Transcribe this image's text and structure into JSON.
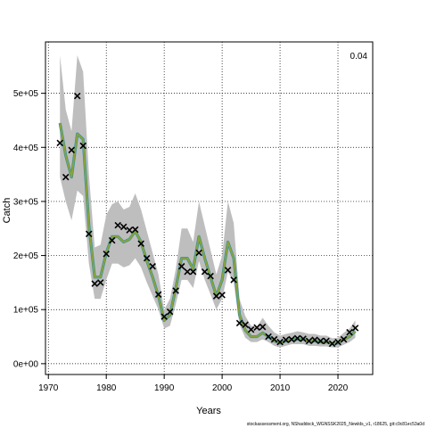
{
  "chart_data": {
    "type": "line",
    "xlabel": "Years",
    "ylabel": "Catch",
    "corner_label": "0.04",
    "footer": "stockassessment.org, NShaddock_WGNSSK2025_Newlds_v1, r18625, git:c9c81ec53a0d",
    "xlim": [
      1969.5,
      2026
    ],
    "ylim": [
      -20000,
      595000
    ],
    "x_ticks": [
      1970,
      1980,
      1990,
      2000,
      2010,
      2020
    ],
    "x_tick_labels": [
      "1970",
      "1980",
      "1990",
      "2000",
      "2010",
      "2020"
    ],
    "y_ticks": [
      0,
      100000,
      200000,
      300000,
      400000,
      500000
    ],
    "y_tick_labels": [
      "0e+00",
      "1e+05",
      "2e+05",
      "3e+05",
      "4e+05",
      "5e+05"
    ],
    "grid": true,
    "colors": {
      "band": "#bebebe",
      "band_small": "#a9b3c4",
      "estimate_outer": "#2f8fa3",
      "estimate_inner": "#8aa33a",
      "observed": "#000000",
      "grid": "#000000"
    },
    "years": [
      1972,
      1973,
      1974,
      1975,
      1976,
      1977,
      1978,
      1979,
      1980,
      1981,
      1982,
      1983,
      1984,
      1985,
      1986,
      1987,
      1988,
      1989,
      1990,
      1991,
      1992,
      1993,
      1994,
      1995,
      1996,
      1997,
      1998,
      1999,
      2000,
      2001,
      2002,
      2003,
      2004,
      2005,
      2006,
      2007,
      2008,
      2009,
      2010,
      2011,
      2012,
      2013,
      2014,
      2015,
      2016,
      2017,
      2018,
      2019,
      2020,
      2021,
      2022,
      2023
    ],
    "estimate": [
      445000,
      385000,
      345000,
      425000,
      415000,
      255000,
      160000,
      160000,
      205000,
      235000,
      235000,
      225000,
      230000,
      245000,
      225000,
      190000,
      160000,
      125000,
      80000,
      90000,
      140000,
      195000,
      195000,
      175000,
      235000,
      195000,
      160000,
      125000,
      155000,
      225000,
      195000,
      90000,
      62000,
      50000,
      50000,
      57000,
      50000,
      42000,
      38000,
      42000,
      45000,
      45000,
      45000,
      42000,
      42000,
      40000,
      40000,
      37000,
      38000,
      45000,
      50000,
      60000
    ],
    "upper": [
      570000,
      470000,
      430000,
      570000,
      540000,
      350000,
      215000,
      220000,
      275000,
      295000,
      300000,
      285000,
      290000,
      315000,
      285000,
      245000,
      205000,
      165000,
      100000,
      120000,
      175000,
      250000,
      250000,
      225000,
      300000,
      255000,
      210000,
      165000,
      200000,
      300000,
      260000,
      120000,
      88000,
      70000,
      68000,
      85000,
      70000,
      58000,
      52000,
      55000,
      57000,
      60000,
      58000,
      55000,
      55000,
      52000,
      52000,
      47000,
      48000,
      57000,
      65000,
      80000
    ],
    "lower": [
      345000,
      300000,
      265000,
      320000,
      310000,
      185000,
      120000,
      120000,
      155000,
      185000,
      185000,
      178000,
      182000,
      195000,
      178000,
      150000,
      125000,
      100000,
      65000,
      70000,
      110000,
      155000,
      155000,
      140000,
      190000,
      155000,
      128000,
      100000,
      120000,
      170000,
      150000,
      72000,
      48000,
      40000,
      40000,
      45000,
      40000,
      33000,
      30000,
      33000,
      36000,
      36000,
      36000,
      33000,
      33000,
      32000,
      32000,
      30000,
      30000,
      35000,
      40000,
      48000
    ],
    "observed": [
      {
        "x": 1972,
        "y": 408000
      },
      {
        "x": 1973,
        "y": 345000
      },
      {
        "x": 1974,
        "y": 395000
      },
      {
        "x": 1975,
        "y": 495000
      },
      {
        "x": 1976,
        "y": 403000
      },
      {
        "x": 1977,
        "y": 240000
      },
      {
        "x": 1978,
        "y": 148000
      },
      {
        "x": 1979,
        "y": 150000
      },
      {
        "x": 1980,
        "y": 203000
      },
      {
        "x": 1981,
        "y": 228000
      },
      {
        "x": 1982,
        "y": 256000
      },
      {
        "x": 1983,
        "y": 253000
      },
      {
        "x": 1984,
        "y": 247000
      },
      {
        "x": 1985,
        "y": 248000
      },
      {
        "x": 1986,
        "y": 222000
      },
      {
        "x": 1987,
        "y": 195000
      },
      {
        "x": 1988,
        "y": 180000
      },
      {
        "x": 1989,
        "y": 128000
      },
      {
        "x": 1990,
        "y": 87000
      },
      {
        "x": 1991,
        "y": 96000
      },
      {
        "x": 1992,
        "y": 135000
      },
      {
        "x": 1993,
        "y": 180000
      },
      {
        "x": 1994,
        "y": 170000
      },
      {
        "x": 1995,
        "y": 170000
      },
      {
        "x": 1996,
        "y": 205000
      },
      {
        "x": 1997,
        "y": 170000
      },
      {
        "x": 1998,
        "y": 162000
      },
      {
        "x": 1999,
        "y": 125000
      },
      {
        "x": 2000,
        "y": 127000
      },
      {
        "x": 2001,
        "y": 173000
      },
      {
        "x": 2002,
        "y": 155000
      },
      {
        "x": 2003,
        "y": 75000
      },
      {
        "x": 2004,
        "y": 72000
      },
      {
        "x": 2005,
        "y": 63000
      },
      {
        "x": 2006,
        "y": 67000
      },
      {
        "x": 2007,
        "y": 68000
      },
      {
        "x": 2008,
        "y": 50000
      },
      {
        "x": 2009,
        "y": 45000
      },
      {
        "x": 2010,
        "y": 40000
      },
      {
        "x": 2011,
        "y": 44000
      },
      {
        "x": 2012,
        "y": 45000
      },
      {
        "x": 2013,
        "y": 47000
      },
      {
        "x": 2014,
        "y": 46000
      },
      {
        "x": 2015,
        "y": 42000
      },
      {
        "x": 2016,
        "y": 44000
      },
      {
        "x": 2017,
        "y": 42000
      },
      {
        "x": 2018,
        "y": 42000
      },
      {
        "x": 2019,
        "y": 37000
      },
      {
        "x": 2020,
        "y": 40000
      },
      {
        "x": 2021,
        "y": 45000
      },
      {
        "x": 2022,
        "y": 58000
      },
      {
        "x": 2023,
        "y": 66000
      }
    ]
  }
}
